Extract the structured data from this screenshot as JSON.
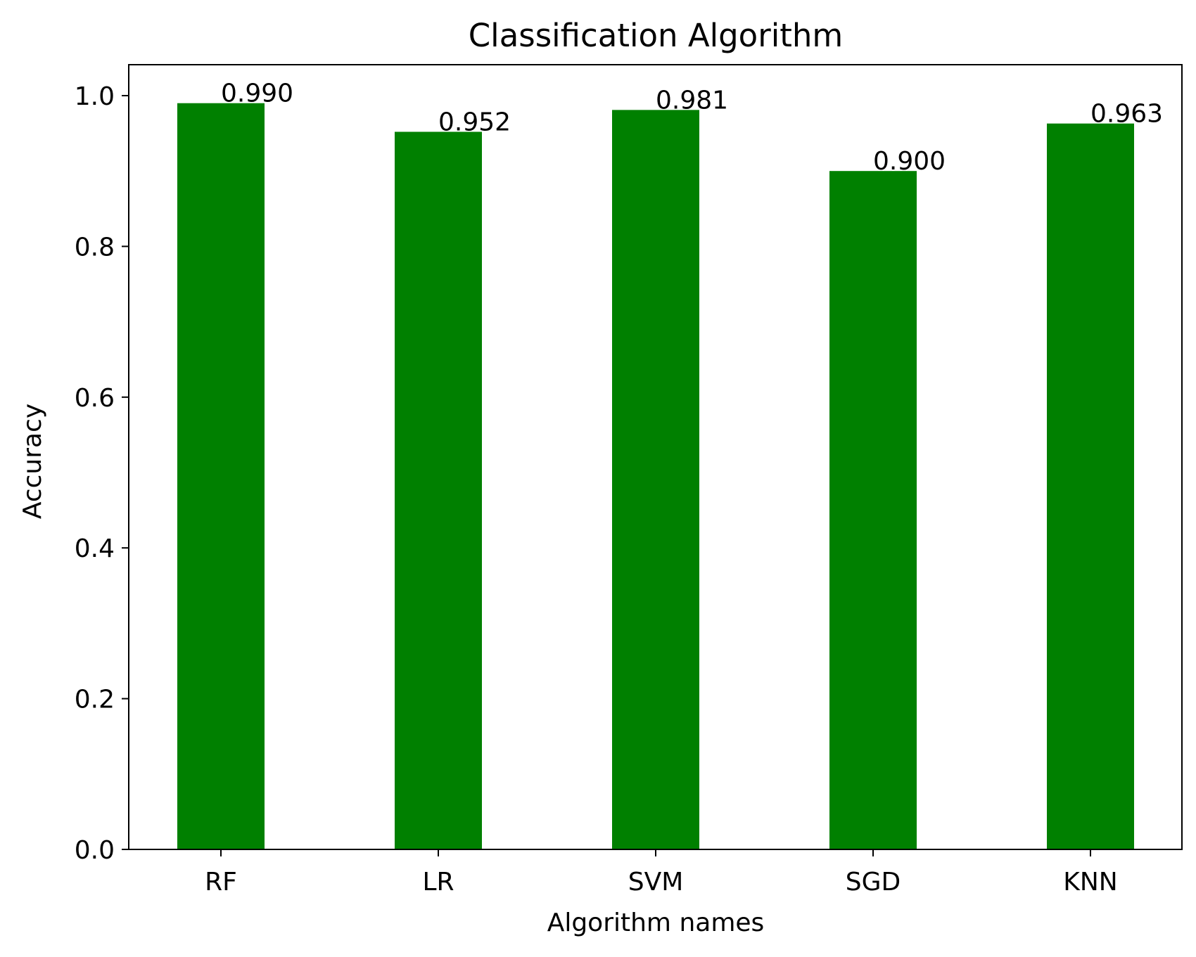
{
  "chart_data": {
    "type": "bar",
    "title": "Classification Algorithm",
    "xlabel": "Algorithm names",
    "ylabel": "Accuracy",
    "categories": [
      "RF",
      "LR",
      "SVM",
      "SGD",
      "KNN"
    ],
    "values": [
      0.99,
      0.952,
      0.981,
      0.9,
      0.963
    ],
    "value_labels": [
      "0.990",
      "0.952",
      "0.981",
      "0.900",
      "0.963"
    ],
    "ylim": [
      0,
      1.04
    ],
    "yticks": [
      0.0,
      0.2,
      0.4,
      0.6,
      0.8,
      1.0
    ],
    "ytick_labels": [
      "0.0",
      "0.2",
      "0.4",
      "0.6",
      "0.8",
      "1.0"
    ],
    "bar_color": "#008000",
    "grid": false,
    "legend": "none"
  }
}
